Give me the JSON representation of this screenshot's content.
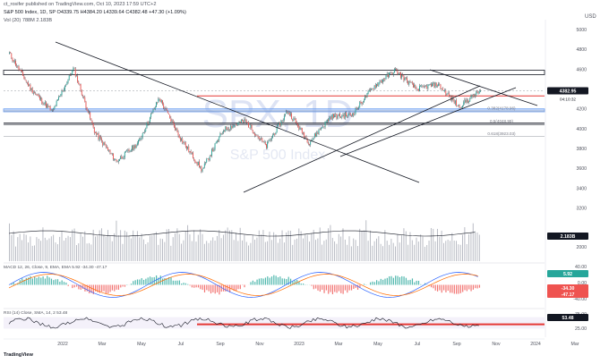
{
  "header": {
    "published_line": "ct_rosifer published on TradingView.com, Oct 10, 2023 17:59 UTC+2",
    "symbol_line": "S&P 500 Index, 1D, SP  O4339.75  H4384.20  L4339.64  C4382.48  +47.30 (+1.09%)",
    "volume_line": "Vol (20)  788M  2.183B",
    "currency": "USD"
  },
  "watermark": {
    "symbol": "SPX, 1D",
    "name": "S&P 500 Index"
  },
  "chart_data": [
    {
      "type": "line",
      "subtype": "candlestick-price",
      "title": "S&P 500 Index, 1D, SP",
      "ohlc_last": {
        "open": 4339.75,
        "high": 4384.2,
        "low": 4339.64,
        "close": 4382.48,
        "change": 47.3,
        "change_pct": "+1.09%"
      },
      "price_labels": {
        "last": "4382.95",
        "countdown": "04:10:32"
      },
      "y_ticks": [
        5000,
        4800,
        4600,
        4400,
        4200,
        4000,
        3800,
        3600,
        3400,
        3200
      ],
      "ylim": [
        3150,
        5100
      ],
      "x_ticks": [
        "2022",
        "Mar",
        "May",
        "Jul",
        "Sep",
        "Nov",
        "2023",
        "Mar",
        "May",
        "Jul",
        "Sep",
        "Nov",
        "2024",
        "Mar"
      ],
      "x_anchor_points": [
        {
          "label": "Jan 2022",
          "v": 4760
        },
        {
          "label": "Feb 2022",
          "v": 4400
        },
        {
          "label": "Mar 2022",
          "v": 4170
        },
        {
          "label": "Apr 2022",
          "v": 4610
        },
        {
          "label": "May 2022",
          "v": 3960
        },
        {
          "label": "Jun 2022",
          "v": 3670
        },
        {
          "label": "Jul 2022",
          "v": 3850
        },
        {
          "label": "Aug 2022",
          "v": 4310
        },
        {
          "label": "Sep 2022",
          "v": 3900
        },
        {
          "label": "Oct 2022",
          "v": 3580
        },
        {
          "label": "Nov 2022",
          "v": 3990
        },
        {
          "label": "Dec 2022",
          "v": 4080
        },
        {
          "label": "Jan 2023",
          "v": 3820
        },
        {
          "label": "Feb 2023",
          "v": 4180
        },
        {
          "label": "Mar 2023",
          "v": 3860
        },
        {
          "label": "Apr 2023",
          "v": 4120
        },
        {
          "label": "May 2023",
          "v": 4140
        },
        {
          "label": "Jun 2023",
          "v": 4420
        },
        {
          "label": "Jul 2023",
          "v": 4590
        },
        {
          "label": "Aug 2023",
          "v": 4400
        },
        {
          "label": "Sep 2023",
          "v": 4450
        },
        {
          "label": "Oct 2023",
          "v": 4220
        },
        {
          "label": "Oct 10 2023",
          "v": 4382
        }
      ],
      "horizontal_levels": [
        {
          "name": "resistance-zone",
          "from": 4545,
          "to": 4590
        },
        {
          "name": "red-level",
          "value": 4330
        },
        {
          "name": "blue-zone",
          "from": 4170,
          "to": 4200
        },
        {
          "name": "support-level",
          "value": 4055
        }
      ],
      "fib_labels": [
        "0.382(4178.96)",
        "0.5(4048.99)",
        "0.618(3923.03)"
      ],
      "fib_values": [
        4178.96,
        4048.99,
        3923.03
      ],
      "colors": {
        "up": "#26a69a",
        "down": "#ef5350",
        "red_level": "#e53935",
        "blue_zone": "#90b8f8",
        "price_tag": "#131722"
      }
    },
    {
      "type": "bar",
      "title": "Vol (20)",
      "last_values": [
        "2.183B",
        "788M"
      ],
      "y_ticks": [
        "4000",
        "2000"
      ]
    },
    {
      "type": "line",
      "title": "MACD",
      "header_text": "MACD 12, 26, Close, 9, EMA, EMA  5.92  -34.30  -47.17",
      "series": [
        {
          "name": "MACD",
          "color": "#2962ff"
        },
        {
          "name": "Signal",
          "color": "#ff6d00"
        },
        {
          "name": "Histogram",
          "color": "#26a69a"
        }
      ],
      "y_ticks": [
        "40.00",
        "0.00",
        "-40.00"
      ],
      "last_values": [
        "5.92",
        "-34.30",
        "-47.17"
      ]
    },
    {
      "type": "line",
      "title": "RSI",
      "header_text": "RSI (14) Close, SMA, 14, 2  53.48",
      "last_value": "53.48",
      "y_ticks": [
        "75.00",
        "25.00"
      ],
      "band": [
        30,
        70
      ],
      "colors": {
        "line": "#131722",
        "band": "#e53935"
      }
    }
  ],
  "footer": {
    "brand": "TradingView"
  }
}
